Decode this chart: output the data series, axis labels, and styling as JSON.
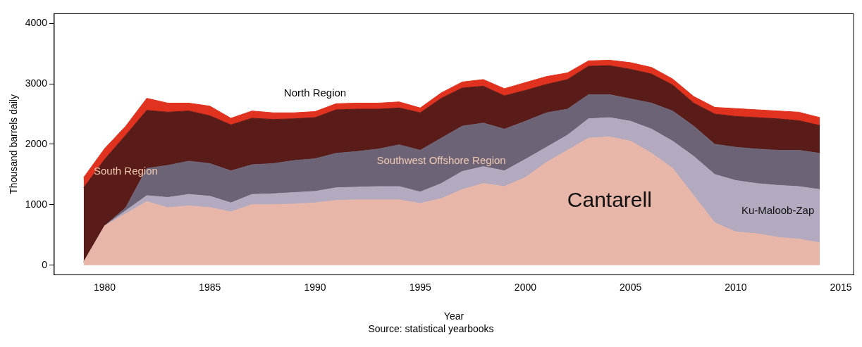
{
  "chart_data": {
    "type": "area",
    "stacked": true,
    "xlabel": "Year",
    "ylabel": "Thousand barrels daily",
    "annotations": [
      "Source: statistical yearbooks"
    ],
    "x": [
      1979,
      1980,
      1981,
      1982,
      1983,
      1984,
      1985,
      1986,
      1987,
      1988,
      1989,
      1990,
      1991,
      1992,
      1993,
      1994,
      1995,
      1996,
      1997,
      1998,
      1999,
      2000,
      2001,
      2002,
      2003,
      2004,
      2005,
      2006,
      2007,
      2008,
      2009,
      2010,
      2011,
      2012,
      2013,
      2014
    ],
    "xlim": [
      1977.6,
      2015.6
    ],
    "xticks": [
      1980,
      1985,
      1990,
      1995,
      2000,
      2005,
      2010,
      2015
    ],
    "ylim": [
      -160,
      4160
    ],
    "yticks": [
      0,
      1000,
      2000,
      3000,
      4000
    ],
    "grid": false,
    "legend": false,
    "series": [
      {
        "name": "Cantarell",
        "color": "#e8b6a8",
        "values": [
          50,
          650,
          850,
          1050,
          950,
          980,
          950,
          880,
          1000,
          1000,
          1010,
          1030,
          1070,
          1080,
          1080,
          1080,
          1020,
          1100,
          1250,
          1350,
          1300,
          1450,
          1700,
          1900,
          2100,
          2120,
          2050,
          1850,
          1600,
          1150,
          700,
          550,
          520,
          460,
          430,
          370
        ]
      },
      {
        "name": "Ku-Maloob-Zap",
        "color": "#b3aabf",
        "values": [
          0,
          0,
          50,
          100,
          170,
          190,
          190,
          150,
          170,
          180,
          190,
          190,
          210,
          210,
          220,
          220,
          190,
          250,
          300,
          280,
          260,
          300,
          250,
          250,
          320,
          320,
          330,
          400,
          450,
          650,
          800,
          850,
          830,
          860,
          870,
          880
        ]
      },
      {
        "name": "Southwest Offshore Region",
        "color": "#6c6476",
        "values": [
          0,
          0,
          50,
          450,
          530,
          550,
          540,
          530,
          490,
          500,
          530,
          540,
          570,
          590,
          620,
          690,
          690,
          750,
          750,
          720,
          690,
          630,
          570,
          430,
          400,
          380,
          370,
          430,
          500,
          500,
          500,
          550,
          570,
          580,
          600,
          600
        ]
      },
      {
        "name": "South Region",
        "color": "#5a1c18",
        "values": [
          1230,
          1100,
          1200,
          960,
          880,
          830,
          790,
          760,
          770,
          730,
          690,
          680,
          720,
          700,
          660,
          610,
          620,
          660,
          630,
          610,
          550,
          510,
          470,
          490,
          470,
          480,
          490,
          480,
          430,
          380,
          500,
          510,
          520,
          520,
          490,
          460
        ]
      },
      {
        "name": "North Region",
        "color": "#e0321e",
        "values": [
          170,
          180,
          150,
          200,
          150,
          130,
          160,
          110,
          120,
          110,
          100,
          100,
          100,
          100,
          100,
          100,
          80,
          90,
          100,
          110,
          120,
          130,
          130,
          110,
          90,
          90,
          110,
          110,
          100,
          110,
          110,
          130,
          130,
          130,
          140,
          130
        ]
      }
    ]
  }
}
